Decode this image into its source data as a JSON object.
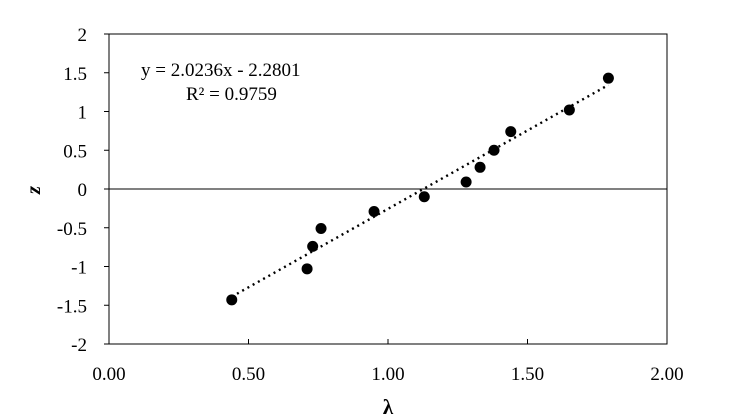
{
  "chart_data": {
    "type": "scatter",
    "xlabel": "λ",
    "ylabel": "z",
    "xlim": [
      0,
      2
    ],
    "ylim": [
      -2,
      2
    ],
    "x_ticks": [
      0,
      0.5,
      1,
      1.5,
      2
    ],
    "x_tick_labels": [
      "0.00",
      "0.50",
      "1.00",
      "1.50",
      "2.00"
    ],
    "y_ticks": [
      2,
      1.5,
      1,
      0.5,
      0,
      -0.5,
      -1,
      -1.5,
      -2
    ],
    "y_tick_labels": [
      "2",
      "1.5",
      "1",
      "0.5",
      "0",
      "-0.5",
      "-1",
      "-1.5",
      "-2"
    ],
    "grid": false,
    "points": [
      {
        "x": 0.44,
        "y": -1.43
      },
      {
        "x": 0.71,
        "y": -1.03
      },
      {
        "x": 0.73,
        "y": -0.74
      },
      {
        "x": 0.76,
        "y": -0.51
      },
      {
        "x": 0.95,
        "y": -0.29
      },
      {
        "x": 1.13,
        "y": -0.1
      },
      {
        "x": 1.28,
        "y": 0.09
      },
      {
        "x": 1.33,
        "y": 0.28
      },
      {
        "x": 1.38,
        "y": 0.5
      },
      {
        "x": 1.44,
        "y": 0.74
      },
      {
        "x": 1.65,
        "y": 1.02
      },
      {
        "x": 1.79,
        "y": 1.43
      }
    ],
    "trendline": {
      "type": "linear",
      "slope": 2.0236,
      "intercept": -2.2801,
      "x_range": [
        0.44,
        1.79
      ],
      "style": "dotted",
      "equation": "y = 2.0236x - 2.2801",
      "r_squared": "R² = 0.9759"
    }
  }
}
